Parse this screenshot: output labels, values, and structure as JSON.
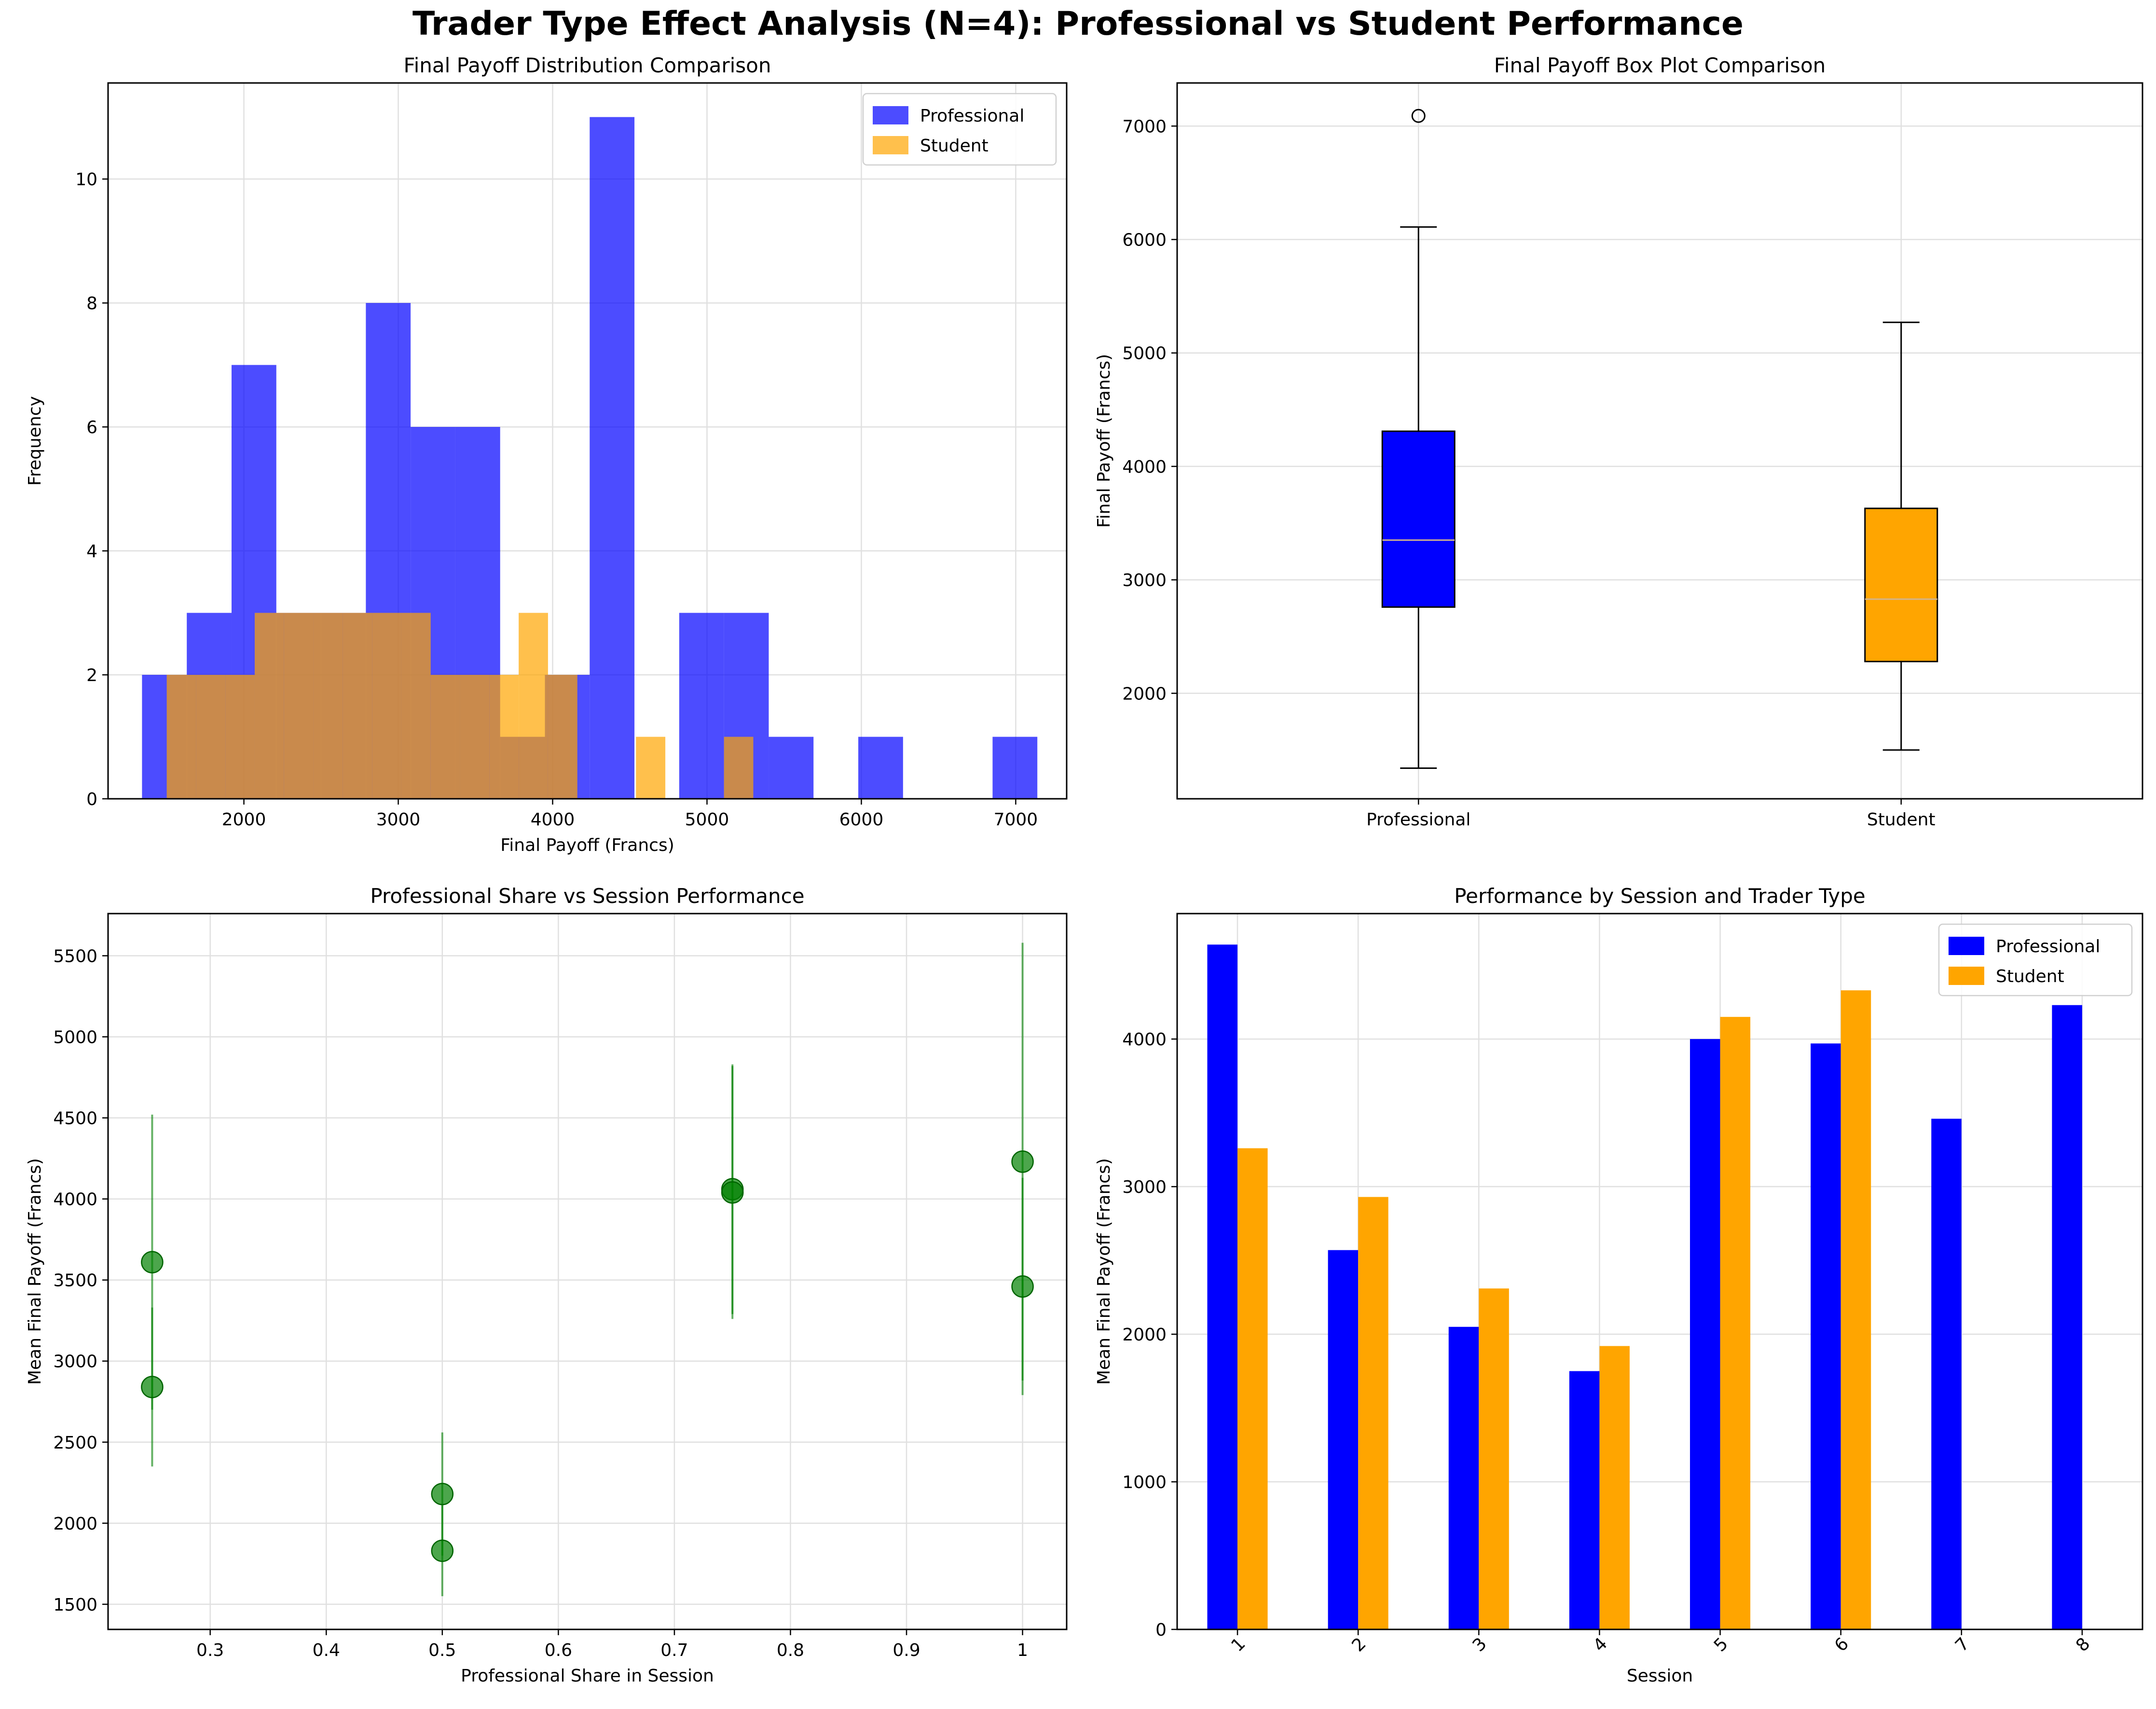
{
  "figure": {
    "title": "Trader Type Effect Analysis (N=4): Professional vs Student Performance"
  },
  "colors": {
    "professional": "#0000ff",
    "student": "#ffa500",
    "scatter": "#008000",
    "grid": "#e0e0e0",
    "median": "#d2b48c"
  },
  "chart_data": [
    {
      "id": "hist",
      "type": "bar",
      "title": "Final Payoff Distribution Comparison",
      "xlabel": "Final Payoff (Francs)",
      "ylabel": "Frequency",
      "xlim": [
        1120,
        7330
      ],
      "ylim": [
        0,
        11.55
      ],
      "xticks": [
        2000,
        3000,
        4000,
        5000,
        6000,
        7000
      ],
      "yticks": [
        0,
        2,
        4,
        6,
        8,
        10
      ],
      "grid": true,
      "legend": "top-right",
      "series": [
        {
          "name": "Professional",
          "bins": [
            {
              "x0": 1340,
              "x1": 1630,
              "count": 2
            },
            {
              "x0": 1630,
              "x1": 1920,
              "count": 3
            },
            {
              "x0": 1920,
              "x1": 2210,
              "count": 7
            },
            {
              "x0": 2210,
              "x1": 2500,
              "count": 3
            },
            {
              "x0": 2500,
              "x1": 2790,
              "count": 3
            },
            {
              "x0": 2790,
              "x1": 3080,
              "count": 8
            },
            {
              "x0": 3080,
              "x1": 3370,
              "count": 6
            },
            {
              "x0": 3370,
              "x1": 3660,
              "count": 6
            },
            {
              "x0": 3660,
              "x1": 3950,
              "count": 1
            },
            {
              "x0": 3950,
              "x1": 4240,
              "count": 2
            },
            {
              "x0": 4240,
              "x1": 4530,
              "count": 11
            },
            {
              "x0": 4530,
              "x1": 4820,
              "count": 0
            },
            {
              "x0": 4820,
              "x1": 5110,
              "count": 3
            },
            {
              "x0": 5110,
              "x1": 5400,
              "count": 3
            },
            {
              "x0": 5400,
              "x1": 5690,
              "count": 1
            },
            {
              "x0": 5690,
              "x1": 5980,
              "count": 0
            },
            {
              "x0": 5980,
              "x1": 6270,
              "count": 1
            },
            {
              "x0": 6270,
              "x1": 6560,
              "count": 0
            },
            {
              "x0": 6560,
              "x1": 6850,
              "count": 0
            },
            {
              "x0": 6850,
              "x1": 7140,
              "count": 1
            }
          ]
        },
        {
          "name": "Student",
          "bins": [
            {
              "x0": 1500,
              "x1": 1690,
              "count": 2
            },
            {
              "x0": 1690,
              "x1": 1880,
              "count": 2
            },
            {
              "x0": 1880,
              "x1": 2070,
              "count": 2
            },
            {
              "x0": 2070,
              "x1": 2260,
              "count": 3
            },
            {
              "x0": 2260,
              "x1": 2450,
              "count": 3
            },
            {
              "x0": 2450,
              "x1": 2640,
              "count": 3
            },
            {
              "x0": 2640,
              "x1": 2830,
              "count": 3
            },
            {
              "x0": 2830,
              "x1": 3020,
              "count": 3
            },
            {
              "x0": 3020,
              "x1": 3210,
              "count": 3
            },
            {
              "x0": 3210,
              "x1": 3400,
              "count": 2
            },
            {
              "x0": 3400,
              "x1": 3590,
              "count": 2
            },
            {
              "x0": 3590,
              "x1": 3780,
              "count": 2
            },
            {
              "x0": 3780,
              "x1": 3970,
              "count": 3
            },
            {
              "x0": 3970,
              "x1": 4160,
              "count": 2
            },
            {
              "x0": 4160,
              "x1": 4350,
              "count": 0
            },
            {
              "x0": 4350,
              "x1": 4540,
              "count": 0
            },
            {
              "x0": 4540,
              "x1": 4730,
              "count": 1
            },
            {
              "x0": 4730,
              "x1": 4920,
              "count": 0
            },
            {
              "x0": 4920,
              "x1": 5110,
              "count": 0
            },
            {
              "x0": 5110,
              "x1": 5300,
              "count": 1
            }
          ]
        }
      ]
    },
    {
      "id": "box",
      "type": "box",
      "title": "Final Payoff Box Plot Comparison",
      "ylabel": "Final Payoff (Francs)",
      "categories": [
        "Professional",
        "Student"
      ],
      "ylim": [
        1070,
        7380
      ],
      "yticks": [
        2000,
        3000,
        4000,
        5000,
        6000,
        7000
      ],
      "grid": true,
      "boxes": [
        {
          "name": "Professional",
          "whisker_low": 1340,
          "q1": 2760,
          "median": 3350,
          "q3": 4310,
          "whisker_high": 6110,
          "outliers": [
            7090
          ]
        },
        {
          "name": "Student",
          "whisker_low": 1500,
          "q1": 2280,
          "median": 2830,
          "q3": 3630,
          "whisker_high": 5270,
          "outliers": []
        }
      ]
    },
    {
      "id": "scatter",
      "type": "scatter",
      "title": "Professional Share vs Session Performance",
      "xlabel": "Professional Share in Session",
      "ylabel": "Mean Final Payoff (Francs)",
      "xlim": [
        0.212,
        1.038
      ],
      "ylim": [
        1345,
        5760
      ],
      "xticks": [
        0.3,
        0.4,
        0.5,
        0.6,
        0.7,
        0.8,
        0.9,
        1.0
      ],
      "yticks": [
        1500,
        2000,
        2500,
        3000,
        3500,
        4000,
        4500,
        5000,
        5500
      ],
      "grid": true,
      "points": [
        {
          "x": 0.25,
          "y": 3610,
          "err_low": 2700,
          "err_high": 4520
        },
        {
          "x": 0.25,
          "y": 2840,
          "err_low": 2350,
          "err_high": 3330
        },
        {
          "x": 0.5,
          "y": 2180,
          "err_low": 1800,
          "err_high": 2560
        },
        {
          "x": 0.5,
          "y": 1830,
          "err_low": 1550,
          "err_high": 2110
        },
        {
          "x": 0.75,
          "y": 4060,
          "err_low": 3290,
          "err_high": 4830
        },
        {
          "x": 0.75,
          "y": 4040,
          "err_low": 3260,
          "err_high": 4820
        },
        {
          "x": 1.0,
          "y": 4230,
          "err_low": 2880,
          "err_high": 5580
        },
        {
          "x": 1.0,
          "y": 3460,
          "err_low": 2790,
          "err_high": 4130
        }
      ]
    },
    {
      "id": "grouped",
      "type": "bar",
      "title": "Performance by Session and Trader Type",
      "xlabel": "Session",
      "ylabel": "Mean Final Payoff (Francs)",
      "categories": [
        "1",
        "2",
        "3",
        "4",
        "5",
        "6",
        "7",
        "8"
      ],
      "ylim": [
        0,
        4850
      ],
      "yticks": [
        0,
        1000,
        2000,
        3000,
        4000
      ],
      "grid": true,
      "legend": "top-right",
      "series": [
        {
          "name": "Professional",
          "values": [
            4640,
            2570,
            2050,
            1750,
            4000,
            3970,
            3460,
            4230
          ]
        },
        {
          "name": "Student",
          "values": [
            3260,
            2930,
            2310,
            1920,
            4150,
            4330,
            null,
            null
          ]
        }
      ]
    }
  ]
}
